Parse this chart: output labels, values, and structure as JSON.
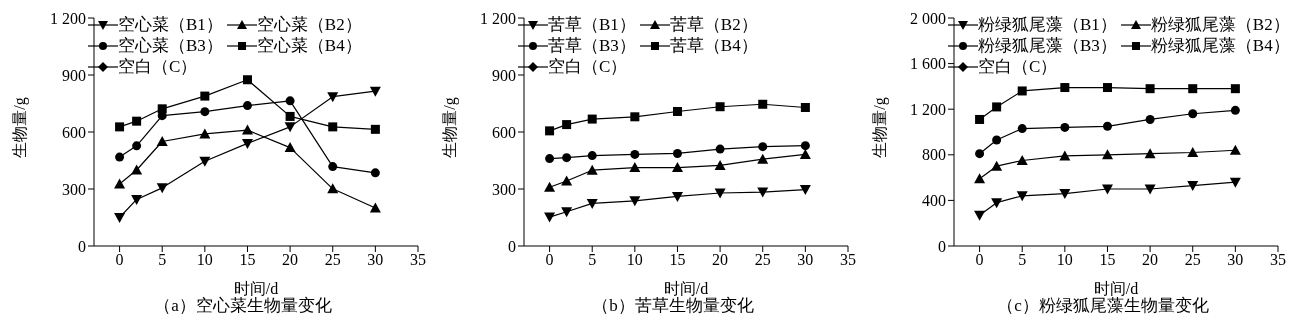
{
  "chart_data": [
    {
      "type": "line",
      "title": "（a）空心菜生物量变化",
      "xlabel": "时间/d",
      "ylabel": "生物量/g",
      "x": [
        0,
        2,
        5,
        10,
        15,
        20,
        25,
        30
      ],
      "xlim": [
        -3,
        35
      ],
      "xticks": [
        0,
        5,
        10,
        15,
        20,
        25,
        30,
        35
      ],
      "ylim": [
        0,
        1200
      ],
      "yticks": [
        0,
        300,
        600,
        900,
        {
          "value": 1200,
          "label": "1 200"
        }
      ],
      "legend": "top left",
      "line_style": "solid",
      "series": [
        {
          "name": "空心菜（B1）",
          "color": "#000000",
          "marker": "triangle-down",
          "values": [
            150,
            245,
            306,
            446,
            540,
            627,
            786,
            815
          ]
        },
        {
          "name": "空心菜（B2）",
          "color": "#000000",
          "marker": "triangle",
          "values": [
            326,
            400,
            550,
            590,
            610,
            518,
            301,
            200
          ]
        },
        {
          "name": "空心菜（B3）",
          "color": "#000000",
          "marker": "circle",
          "values": [
            468,
            527,
            686,
            707,
            739,
            764,
            418,
            385
          ]
        },
        {
          "name": "空心菜（B4）",
          "color": "#000000",
          "marker": "square",
          "values": [
            627,
            657,
            722,
            789,
            875,
            682,
            627,
            614
          ]
        },
        {
          "name": "空白（C）",
          "color": "#000000",
          "marker": "diamond",
          "values": [
            null,
            null,
            null,
            null,
            null,
            null,
            null,
            null
          ]
        }
      ]
    },
    {
      "type": "line",
      "title": "（b）苦草生物量变化",
      "xlabel": "时间/d",
      "ylabel": "生物量/g",
      "x": [
        0,
        2,
        5,
        10,
        15,
        20,
        25,
        30
      ],
      "xlim": [
        -3,
        35
      ],
      "xticks": [
        0,
        5,
        10,
        15,
        20,
        25,
        30,
        35
      ],
      "ylim": [
        0,
        1200
      ],
      "yticks": [
        0,
        300,
        600,
        900,
        {
          "value": 1200,
          "label": "1 200"
        }
      ],
      "legend": "top left",
      "line_style": "solid",
      "series": [
        {
          "name": "苦草（B1）",
          "color": "#000000",
          "marker": "triangle-down",
          "values": [
            152,
            180,
            224,
            238,
            261,
            279,
            284,
            297
          ]
        },
        {
          "name": "苦草（B2）",
          "color": "#000000",
          "marker": "triangle",
          "values": [
            309,
            342,
            399,
            413,
            413,
            424,
            457,
            482
          ]
        },
        {
          "name": "苦草（B3）",
          "color": "#000000",
          "marker": "circle",
          "values": [
            460,
            465,
            476,
            482,
            487,
            510,
            523,
            528
          ]
        },
        {
          "name": "苦草（B4）",
          "color": "#000000",
          "marker": "square",
          "values": [
            606,
            639,
            668,
            680,
            708,
            733,
            746,
            729
          ]
        },
        {
          "name": "空白（C）",
          "color": "#000000",
          "marker": "diamond",
          "values": [
            null,
            null,
            null,
            null,
            null,
            null,
            null,
            null
          ]
        }
      ]
    },
    {
      "type": "line",
      "title": "（c）粉绿狐尾藻生物量变化",
      "xlabel": "时间/d",
      "ylabel": "生物量/g",
      "x": [
        0,
        2,
        5,
        10,
        15,
        20,
        25,
        30
      ],
      "xlim": [
        -3,
        35
      ],
      "xticks": [
        0,
        5,
        10,
        15,
        20,
        25,
        30,
        35
      ],
      "ylim": [
        0,
        2000
      ],
      "yticks": [
        0,
        400,
        800,
        {
          "value": 1200,
          "label": "1 200"
        },
        {
          "value": 1600,
          "label": "1 600"
        },
        {
          "value": 2000,
          "label": "2 000"
        }
      ],
      "legend": "top left",
      "line_style": "solid",
      "series": [
        {
          "name": "粉绿狐尾藻（B1）",
          "color": "#000000",
          "marker": "triangle-down",
          "values": [
            270,
            380,
            440,
            460,
            500,
            500,
            530,
            560
          ]
        },
        {
          "name": "粉绿狐尾藻（B2）",
          "color": "#000000",
          "marker": "triangle",
          "values": [
            590,
            700,
            750,
            790,
            800,
            810,
            820,
            840
          ]
        },
        {
          "name": "粉绿狐尾藻（B3）",
          "color": "#000000",
          "marker": "circle",
          "values": [
            810,
            930,
            1030,
            1040,
            1050,
            1110,
            1160,
            1190
          ]
        },
        {
          "name": "粉绿狐尾藻（B4）",
          "color": "#000000",
          "marker": "square",
          "values": [
            1110,
            1220,
            1360,
            1390,
            1390,
            1380,
            1380,
            1380
          ]
        },
        {
          "name": "空白（C）",
          "color": "#000000",
          "marker": "diamond",
          "values": [
            null,
            null,
            null,
            null,
            null,
            null,
            null,
            null
          ]
        }
      ]
    }
  ]
}
